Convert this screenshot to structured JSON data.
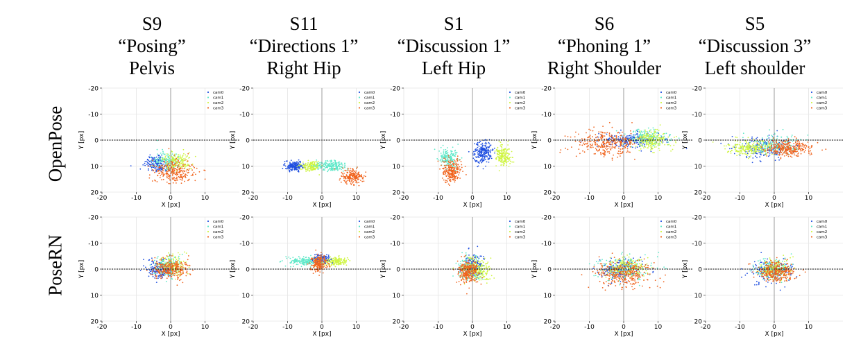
{
  "columns": [
    {
      "subject": "S9",
      "action": "“Posing”",
      "joint": "Pelvis"
    },
    {
      "subject": "S11",
      "action": "“Directions 1”",
      "joint": "Right Hip"
    },
    {
      "subject": "S1",
      "action": "“Discussion 1”",
      "joint": "Left Hip"
    },
    {
      "subject": "S6",
      "action": "“Phoning 1”",
      "joint": "Right Shoulder"
    },
    {
      "subject": "S5",
      "action": "“Discussion 3”",
      "joint": "Left shoulder"
    }
  ],
  "rows": [
    {
      "label": "OpenPose"
    },
    {
      "label": "PoseRN"
    }
  ],
  "colors": {
    "cam0": "#1f4fe0",
    "cam1": "#5ee8c8",
    "cam2": "#cff542",
    "cam3": "#f0641e"
  },
  "chart_data": {
    "type": "scatter",
    "xlabel": "X [px]",
    "ylabel": "Y [px]",
    "xlim": [
      -20,
      20
    ],
    "ylim": [
      20,
      -20
    ],
    "xticks": [
      -20,
      -10,
      0,
      10
    ],
    "yticks": [
      -20,
      -10,
      0,
      10,
      20
    ],
    "grid": true,
    "legend": [
      "cam0",
      "cam1",
      "cam2",
      "cam3"
    ],
    "legend_position": "top-right",
    "panels": [
      {
        "row": "OpenPose",
        "column": "S9",
        "clusters": [
          {
            "cam": "cam0",
            "cx": -4,
            "cy": 9,
            "sx": 2.5,
            "sy": 2.5,
            "n": 160
          },
          {
            "cam": "cam1",
            "cx": -1,
            "cy": 8,
            "sx": 2.5,
            "sy": 2.5,
            "n": 150
          },
          {
            "cam": "cam2",
            "cx": 2,
            "cy": 8,
            "sx": 2.5,
            "sy": 2.0,
            "n": 150
          },
          {
            "cam": "cam3",
            "cx": 1,
            "cy": 12,
            "sx": 4.0,
            "sy": 3.0,
            "n": 260
          }
        ]
      },
      {
        "row": "OpenPose",
        "column": "S11",
        "clusters": [
          {
            "cam": "cam0",
            "cx": -8,
            "cy": 10,
            "sx": 1.8,
            "sy": 1.2,
            "n": 170
          },
          {
            "cam": "cam2",
            "cx": -3,
            "cy": 10,
            "sx": 1.8,
            "sy": 1.3,
            "n": 160
          },
          {
            "cam": "cam1",
            "cx": 3,
            "cy": 10,
            "sx": 3.0,
            "sy": 1.3,
            "n": 200
          },
          {
            "cam": "cam3",
            "cx": 9,
            "cy": 14,
            "sx": 2.2,
            "sy": 1.8,
            "n": 200
          }
        ]
      },
      {
        "row": "OpenPose",
        "column": "S1",
        "clusters": [
          {
            "cam": "cam1",
            "cx": -7,
            "cy": 7,
            "sx": 1.8,
            "sy": 2.5,
            "n": 170
          },
          {
            "cam": "cam0",
            "cx": 3,
            "cy": 5,
            "sx": 1.8,
            "sy": 2.8,
            "n": 220
          },
          {
            "cam": "cam2",
            "cx": 9,
            "cy": 6,
            "sx": 1.4,
            "sy": 2.8,
            "n": 190
          },
          {
            "cam": "cam3",
            "cx": -6,
            "cy": 12,
            "sx": 2.0,
            "sy": 3.0,
            "n": 230
          }
        ]
      },
      {
        "row": "OpenPose",
        "column": "S6",
        "clusters": [
          {
            "cam": "cam0",
            "cx": 2,
            "cy": 0,
            "sx": 6.0,
            "sy": 2.0,
            "n": 200
          },
          {
            "cam": "cam1",
            "cx": 7,
            "cy": -1,
            "sx": 4.0,
            "sy": 2.0,
            "n": 160
          },
          {
            "cam": "cam2",
            "cx": 8,
            "cy": 0,
            "sx": 4.0,
            "sy": 2.5,
            "n": 200
          },
          {
            "cam": "cam3",
            "cx": -5,
            "cy": 1,
            "sx": 6.0,
            "sy": 3.0,
            "n": 300
          }
        ]
      },
      {
        "row": "OpenPose",
        "column": "S5",
        "clusters": [
          {
            "cam": "cam0",
            "cx": -3,
            "cy": 3,
            "sx": 5.0,
            "sy": 2.5,
            "n": 200
          },
          {
            "cam": "cam1",
            "cx": 0,
            "cy": 2,
            "sx": 5.0,
            "sy": 2.5,
            "n": 160
          },
          {
            "cam": "cam2",
            "cx": -7,
            "cy": 3,
            "sx": 4.0,
            "sy": 2.0,
            "n": 220
          },
          {
            "cam": "cam3",
            "cx": 4,
            "cy": 3,
            "sx": 4.5,
            "sy": 2.0,
            "n": 300
          }
        ]
      },
      {
        "row": "PoseRN",
        "column": "S9",
        "clusters": [
          {
            "cam": "cam0",
            "cx": -3,
            "cy": 0,
            "sx": 2.5,
            "sy": 2.5,
            "n": 160
          },
          {
            "cam": "cam1",
            "cx": -1,
            "cy": -1,
            "sx": 2.5,
            "sy": 2.5,
            "n": 140
          },
          {
            "cam": "cam2",
            "cx": 1,
            "cy": -1,
            "sx": 2.5,
            "sy": 2.5,
            "n": 140
          },
          {
            "cam": "cam3",
            "cx": 0,
            "cy": 0,
            "sx": 3.5,
            "sy": 2.5,
            "n": 260
          }
        ]
      },
      {
        "row": "PoseRN",
        "column": "S11",
        "clusters": [
          {
            "cam": "cam1",
            "cx": -5,
            "cy": -3,
            "sx": 3.0,
            "sy": 1.2,
            "n": 180
          },
          {
            "cam": "cam2",
            "cx": 4,
            "cy": -3,
            "sx": 2.5,
            "sy": 1.2,
            "n": 180
          },
          {
            "cam": "cam0",
            "cx": 0,
            "cy": -4,
            "sx": 1.5,
            "sy": 1.2,
            "n": 100
          },
          {
            "cam": "cam3",
            "cx": -1,
            "cy": -2,
            "sx": 1.5,
            "sy": 2.0,
            "n": 200
          }
        ]
      },
      {
        "row": "PoseRN",
        "column": "S1",
        "clusters": [
          {
            "cam": "cam0",
            "cx": 0,
            "cy": -1,
            "sx": 2.0,
            "sy": 3.0,
            "n": 160
          },
          {
            "cam": "cam1",
            "cx": -1,
            "cy": 0,
            "sx": 2.5,
            "sy": 3.0,
            "n": 160
          },
          {
            "cam": "cam2",
            "cx": 1,
            "cy": 0,
            "sx": 3.0,
            "sy": 3.0,
            "n": 220
          },
          {
            "cam": "cam3",
            "cx": -1,
            "cy": 1,
            "sx": 2.0,
            "sy": 3.0,
            "n": 260
          }
        ]
      },
      {
        "row": "PoseRN",
        "column": "S6",
        "clusters": [
          {
            "cam": "cam0",
            "cx": -1,
            "cy": 0,
            "sx": 4.0,
            "sy": 2.5,
            "n": 180
          },
          {
            "cam": "cam1",
            "cx": 0,
            "cy": 0,
            "sx": 5.0,
            "sy": 3.0,
            "n": 180
          },
          {
            "cam": "cam2",
            "cx": 1,
            "cy": -1,
            "sx": 4.0,
            "sy": 2.5,
            "n": 180
          },
          {
            "cam": "cam3",
            "cx": 0,
            "cy": 2,
            "sx": 5.0,
            "sy": 3.5,
            "n": 300
          }
        ]
      },
      {
        "row": "PoseRN",
        "column": "S5",
        "clusters": [
          {
            "cam": "cam0",
            "cx": -1,
            "cy": 1,
            "sx": 4.0,
            "sy": 3.0,
            "n": 180
          },
          {
            "cam": "cam1",
            "cx": 0,
            "cy": 0,
            "sx": 3.5,
            "sy": 2.5,
            "n": 150
          },
          {
            "cam": "cam2",
            "cx": 0,
            "cy": 0,
            "sx": 3.0,
            "sy": 2.5,
            "n": 150
          },
          {
            "cam": "cam3",
            "cx": 1,
            "cy": 1,
            "sx": 3.5,
            "sy": 2.5,
            "n": 280
          }
        ]
      }
    ]
  }
}
